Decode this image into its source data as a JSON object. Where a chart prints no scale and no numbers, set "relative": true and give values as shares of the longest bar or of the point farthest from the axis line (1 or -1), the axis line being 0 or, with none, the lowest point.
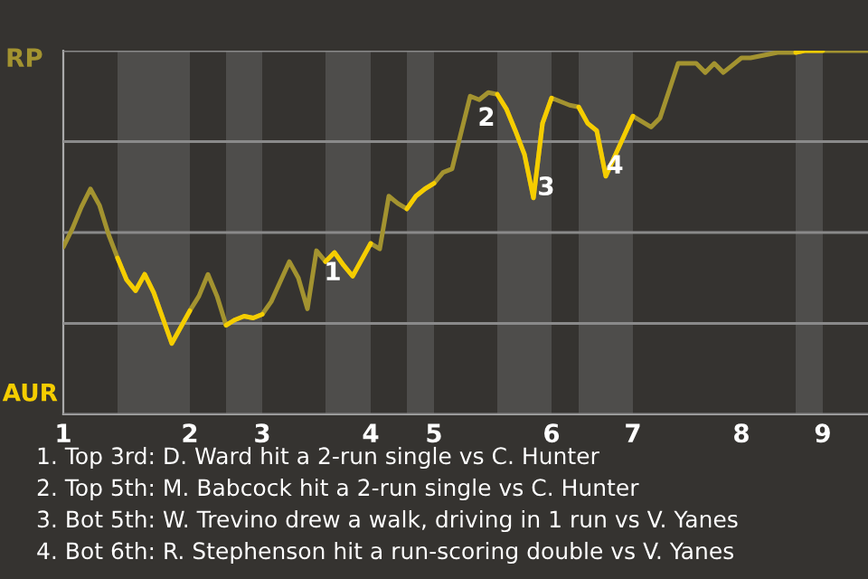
{
  "chart_data": {
    "type": "line",
    "relative": true,
    "categories": [
      "1",
      null,
      null,
      null,
      null,
      null,
      null,
      null,
      null,
      null,
      null,
      null,
      null,
      null,
      "2",
      null,
      null,
      null,
      null,
      null,
      null,
      null,
      "3",
      null,
      null,
      null,
      null,
      null,
      null,
      null,
      null,
      null,
      null,
      null,
      "4",
      null,
      null,
      null,
      null,
      null,
      null,
      "5",
      null,
      null,
      null,
      null,
      null,
      null,
      null,
      null,
      null,
      null,
      null,
      null,
      "6",
      null,
      null,
      null,
      null,
      null,
      null,
      null,
      null,
      "7",
      null,
      null,
      null,
      null,
      null,
      null,
      null,
      null,
      null,
      null,
      null,
      "8",
      null,
      null,
      null,
      null,
      null,
      null,
      null,
      null,
      "9",
      null,
      null,
      null,
      null,
      null
    ],
    "grid": "y",
    "legend": false,
    "marker": "none",
    "line_style": "solid",
    "series": [
      {
        "color": "#a39330",
        "values": [
          0.46,
          0.51,
          0.57,
          0.62,
          0.575,
          0.495,
          0.43,
          0.37,
          0.34,
          0.385,
          0.335,
          0.265,
          0.195,
          0.24,
          0.285,
          0.325,
          0.385,
          0.325,
          0.245,
          0.26,
          0.27,
          0.265,
          0.275,
          0.31,
          0.365,
          0.42,
          0.375,
          0.29,
          0.45,
          0.42,
          0.445,
          0.41,
          0.38,
          0.425,
          0.47,
          0.455,
          0.6,
          0.58,
          0.565,
          0.6,
          0.62,
          0.635,
          0.665,
          0.675,
          0.775,
          0.875,
          0.865,
          0.885,
          0.88,
          0.84,
          0.78,
          0.715,
          0.595,
          0.8,
          0.87,
          0.86,
          0.85,
          0.845,
          0.8,
          0.78,
          0.655,
          0.71,
          0.765,
          0.82,
          0.805,
          0.79,
          0.815,
          0.89,
          0.965,
          0.965,
          0.965,
          0.94,
          0.965,
          0.94,
          0.96,
          0.98,
          0.98,
          0.985,
          0.99,
          0.995,
          0.995,
          0.995,
          1,
          1,
          1,
          1,
          1,
          1,
          1,
          1
        ]
      },
      {
        "color": "#f5cd00",
        "values": [
          null,
          null,
          null,
          null,
          null,
          null,
          0.43,
          0.37,
          0.34,
          0.385,
          0.335,
          0.265,
          0.195,
          0.24,
          0.285,
          null,
          null,
          null,
          0.245,
          0.26,
          0.27,
          0.265,
          0.275,
          null,
          null,
          null,
          null,
          null,
          null,
          0.42,
          0.445,
          0.41,
          0.38,
          0.425,
          0.47,
          null,
          null,
          null,
          0.565,
          0.6,
          0.62,
          0.635,
          null,
          null,
          null,
          null,
          null,
          null,
          0.88,
          0.84,
          0.78,
          0.715,
          0.595,
          0.8,
          0.87,
          null,
          null,
          0.845,
          0.8,
          0.78,
          0.655,
          0.71,
          0.765,
          0.82,
          null,
          null,
          null,
          null,
          null,
          null,
          null,
          null,
          null,
          null,
          null,
          null,
          null,
          null,
          null,
          null,
          null,
          0.995,
          1,
          1,
          1,
          null,
          null,
          null,
          null,
          null
        ]
      }
    ],
    "annotations": [
      "RP",
      "AUR",
      {
        "text": "1",
        "y": 0.45
      },
      {
        "text": "2",
        "y": 0.875
      },
      "3",
      "4",
      "1. Top 3rd: D. Ward hit a 2-run single vs C. Hunter",
      "2. Top 5th: M. Babcock hit a 2-run single vs C. Hunter",
      "3. Bot 5th: W. Trevino drew a walk, driving in 1 run vs V. Yanes",
      "4. Bot 6th: R. Stephenson hit a run-scoring double vs V. Yanes"
    ]
  }
}
